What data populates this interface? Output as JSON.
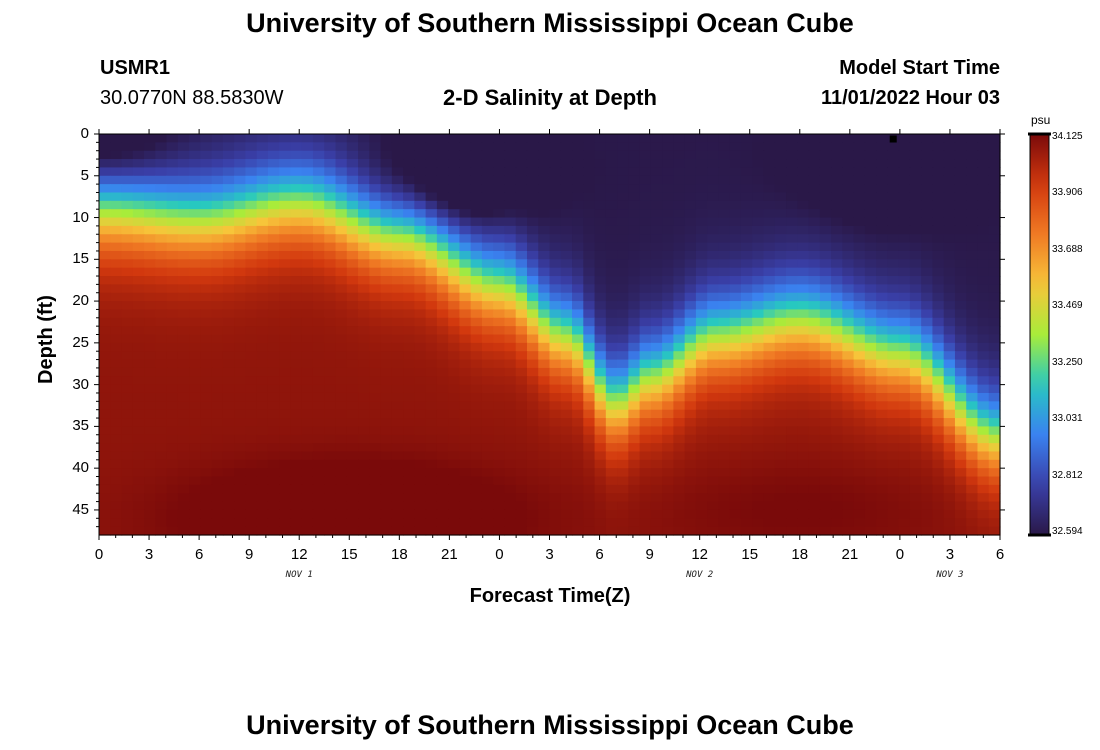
{
  "page": {
    "title": "University of Southern Mississippi Ocean Cube",
    "station": "USMR1",
    "coordinates": "30.0770N  88.5830W",
    "model_start_label": "Model Start Time",
    "model_start_value": "11/01/2022 Hour 03",
    "bottom_title": "University of Southern Mississippi Ocean Cube"
  },
  "chart_data": {
    "type": "heatmap",
    "title": "2-D Salinity at Depth",
    "xlabel": "Forecast Time(Z)",
    "ylabel": "Depth (ft)",
    "colorbar_unit": "psu",
    "x_range_hours": [
      0,
      54
    ],
    "y_range_ft": [
      0,
      48
    ],
    "y_inverted": true,
    "x_ticks": [
      {
        "hour": 0,
        "label": "0"
      },
      {
        "hour": 3,
        "label": "3"
      },
      {
        "hour": 6,
        "label": "6"
      },
      {
        "hour": 9,
        "label": "9"
      },
      {
        "hour": 12,
        "label": "12"
      },
      {
        "hour": 15,
        "label": "15"
      },
      {
        "hour": 18,
        "label": "18"
      },
      {
        "hour": 21,
        "label": "21"
      },
      {
        "hour": 24,
        "label": "0"
      },
      {
        "hour": 27,
        "label": "3"
      },
      {
        "hour": 30,
        "label": "6"
      },
      {
        "hour": 33,
        "label": "9"
      },
      {
        "hour": 36,
        "label": "12"
      },
      {
        "hour": 39,
        "label": "15"
      },
      {
        "hour": 42,
        "label": "18"
      },
      {
        "hour": 45,
        "label": "21"
      },
      {
        "hour": 48,
        "label": "0"
      },
      {
        "hour": 51,
        "label": "3"
      },
      {
        "hour": 54,
        "label": "6"
      }
    ],
    "date_labels": [
      {
        "hour": 12,
        "label": "NOV 1"
      },
      {
        "hour": 36,
        "label": "NOV 2"
      },
      {
        "hour": 51,
        "label": "NOV 3"
      }
    ],
    "y_ticks": [
      0,
      5,
      10,
      15,
      20,
      25,
      30,
      35,
      40,
      45
    ],
    "colorbar_ticks": [
      "34.125",
      "33.906",
      "33.688",
      "33.469",
      "33.250",
      "33.031",
      "32.812",
      "32.594"
    ],
    "value_range": [
      32.594,
      34.125
    ],
    "colormap": [
      "#2a1848",
      "#3a3fa8",
      "#3a82f0",
      "#27c8c0",
      "#a8ec3a",
      "#f7c53a",
      "#f07a24",
      "#d2380e",
      "#7a0a0a"
    ],
    "halocline_depth_ft": [
      {
        "hour": 0,
        "depth": 9
      },
      {
        "hour": 6,
        "depth": 10
      },
      {
        "hour": 12,
        "depth": 8
      },
      {
        "hour": 18,
        "depth": 12
      },
      {
        "hour": 24,
        "depth": 18
      },
      {
        "hour": 28,
        "depth": 24
      },
      {
        "hour": 31,
        "depth": 32
      },
      {
        "hour": 33,
        "depth": 29
      },
      {
        "hour": 37,
        "depth": 24
      },
      {
        "hour": 42,
        "depth": 22
      },
      {
        "hour": 48,
        "depth": 26
      },
      {
        "hour": 54,
        "depth": 36
      }
    ],
    "fresh_cores": [
      {
        "hour": 21.5,
        "depth": 5,
        "salinity": 32.63
      },
      {
        "hour": 47.5,
        "depth": 3,
        "salinity": 32.6
      },
      {
        "hour": 0,
        "depth": 1,
        "salinity": 32.7
      }
    ],
    "salty_cores": [
      {
        "hour": 15,
        "depth": 46,
        "salinity": 34.125
      },
      {
        "hour": 42,
        "depth": 45,
        "salinity": 34.0
      }
    ],
    "marker": {
      "hour": 47.6,
      "depth": 0.6
    }
  }
}
